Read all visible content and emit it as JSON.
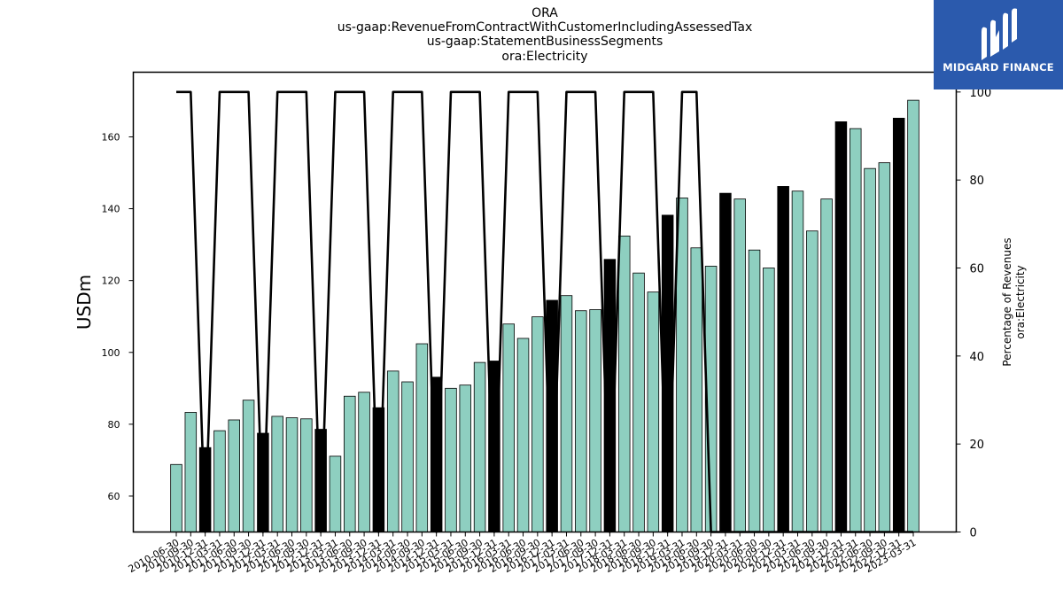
{
  "title_lines": [
    "ORA",
    "us-gaap:RevenueFromContractWithCustomerIncludingAssessedTax",
    "us-gaap:StatementBusinessSegments",
    "ora:Electricity"
  ],
  "logo": {
    "text": "MIDGARD FINANCE",
    "icon": "midgard-logo-icon"
  },
  "colors": {
    "bar_normal": "#8ecfc0",
    "bar_highlight": "#000000",
    "line": "#000000",
    "logo_bg": "#2b5aad"
  },
  "chart_data": {
    "type": "bar",
    "ylabel": "USDm",
    "y2label_lines": [
      "Percentage of Revenues",
      "ora:Electricity"
    ],
    "ylim": [
      50,
      178
    ],
    "y2lim": [
      0,
      104.5
    ],
    "yticks": [
      60,
      80,
      100,
      120,
      140,
      160
    ],
    "y2ticks": [
      0,
      20,
      40,
      60,
      80,
      100
    ],
    "grid": false,
    "categories": [
      "2010-06-30",
      "2010-09-30",
      "2010-12-31",
      "2011-03-31",
      "2011-06-30",
      "2011-09-30",
      "2011-12-31",
      "2012-03-31",
      "2012-06-30",
      "2012-09-30",
      "2012-12-31",
      "2013-03-31",
      "2013-06-30",
      "2013-09-30",
      "2013-12-31",
      "2014-03-31",
      "2014-06-30",
      "2014-09-30",
      "2014-12-31",
      "2015-03-31",
      "2015-06-30",
      "2015-09-30",
      "2015-12-31",
      "2016-03-31",
      "2016-06-30",
      "2016-09-30",
      "2016-12-31",
      "2017-03-31",
      "2017-06-30",
      "2017-09-30",
      "2017-12-31",
      "2018-03-31",
      "2018-06-30",
      "2018-09-30",
      "2018-12-31",
      "2019-03-31",
      "2019-06-30",
      "2019-09-30",
      "2019-12-31",
      "2020-03-31",
      "2020-06-30",
      "2020-09-30",
      "2020-12-31",
      "2021-03-31",
      "2021-06-30",
      "2021-09-30",
      "2021-12-31",
      "2022-03-31",
      "2022-06-30",
      "2022-09-30",
      "2022-12-31",
      "2023-03-31"
    ],
    "xtick_labels": [
      "2010-06-30",
      "2010-09-30",
      "2010-12-31",
      "2011-03-31",
      "2011-06-30",
      "2011-09-30",
      "2011-12-31",
      "2012-03-31",
      "2012-06-30",
      "2012-09-30",
      "2012-12-31",
      "2013-03-31",
      "2013-06-30",
      "2013-09-30",
      "2013-12-31",
      "2014-03-31",
      "2014-06-30",
      "2014-09-30",
      "2014-12-31",
      "2015-03-31",
      "2015-06-30",
      "2015-09-30",
      "2015-12-31",
      "2016-03-31",
      "2016-06-30",
      "2016-09-30",
      "2016-12-31",
      "2017-03-31",
      "2017-06-30",
      "2017-09-30",
      "2017-12-31",
      "2018-03-31",
      "2018-06-30",
      "2018-09-30",
      "2018-12-31",
      "2019-03-31",
      "2019-06-30",
      "2019-09-30",
      "2019-12-31",
      "2020-03-31",
      "2020-06-30",
      "2020-09-30",
      "2020-12-31",
      "2021-03-31",
      "2021-06-30",
      "2021-09-30",
      "2021-12-31",
      "2022-03-31",
      "2022-06-30",
      "2022-09-30",
      "2022-12-31",
      "2023-03-31"
    ],
    "values": [
      68.8,
      83.3,
      73.5,
      78.2,
      81.2,
      86.7,
      77.5,
      82.2,
      81.8,
      81.5,
      78.6,
      71.1,
      87.8,
      88.9,
      84.6,
      94.8,
      91.8,
      102.4,
      93.1,
      90.0,
      90.9,
      97.2,
      97.6,
      107.9,
      103.9,
      109.9,
      114.5,
      115.8,
      111.6,
      111.9,
      125.9,
      132.4,
      122.1,
      116.8,
      138.2,
      143.0,
      129.1,
      124.0,
      144.3,
      142.7,
      128.5,
      123.5,
      146.2,
      144.9,
      133.8,
      142.7,
      164.2,
      162.3,
      151.2,
      152.8,
      165.2,
      170.2
    ],
    "highlighted": [
      false,
      false,
      true,
      false,
      false,
      false,
      true,
      false,
      false,
      false,
      true,
      false,
      false,
      false,
      true,
      false,
      false,
      false,
      true,
      false,
      false,
      false,
      true,
      false,
      false,
      false,
      true,
      false,
      false,
      false,
      true,
      false,
      false,
      false,
      true,
      false,
      false,
      false,
      true,
      false,
      false,
      false,
      true,
      false,
      false,
      false,
      true,
      false,
      false,
      false,
      true,
      false
    ],
    "percentage_line": [
      100,
      100,
      0,
      100,
      100,
      100,
      0,
      100,
      100,
      100,
      0,
      100,
      100,
      100,
      0,
      100,
      100,
      100,
      0,
      100,
      100,
      100,
      0,
      100,
      100,
      100,
      0,
      100,
      100,
      100,
      0,
      100,
      100,
      100,
      0,
      100,
      100,
      0,
      0,
      0,
      0,
      0,
      0,
      0,
      0,
      0,
      0,
      0,
      0,
      0,
      0,
      0
    ]
  }
}
